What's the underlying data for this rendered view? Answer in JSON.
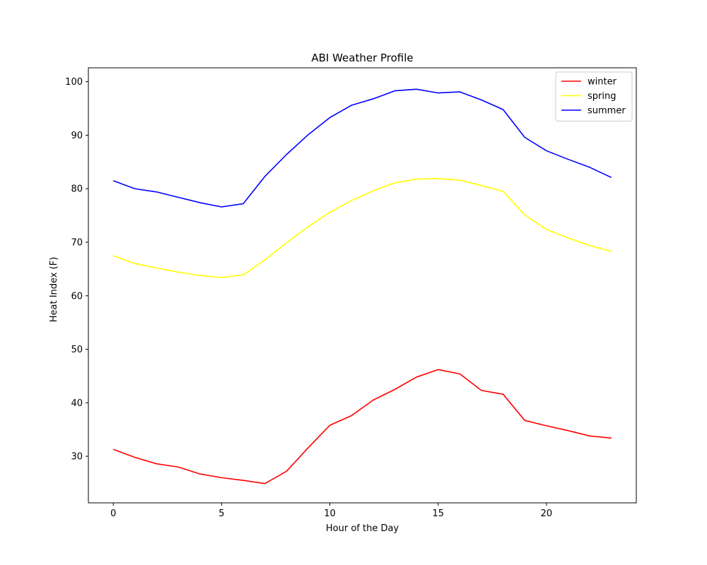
{
  "chart_data": {
    "type": "line",
    "title": "ABI Weather Profile",
    "xlabel": "Hour of the Day",
    "ylabel": "Heat Index (F)",
    "x": [
      0,
      1,
      2,
      3,
      4,
      5,
      6,
      7,
      8,
      9,
      10,
      11,
      12,
      13,
      14,
      15,
      16,
      17,
      18,
      19,
      20,
      21,
      22,
      23
    ],
    "xlim": [
      -1.15,
      24.15
    ],
    "ylim": [
      21.3,
      102.6
    ],
    "xticks": [
      0,
      5,
      10,
      15,
      20
    ],
    "yticks": [
      30,
      40,
      50,
      60,
      70,
      80,
      90,
      100
    ],
    "grid": false,
    "legend_position": "top-right",
    "series": [
      {
        "name": "winter",
        "color": "#ff0000",
        "values": [
          31.3,
          29.8,
          28.6,
          28.0,
          26.7,
          26.0,
          25.5,
          24.9,
          27.2,
          31.6,
          35.8,
          37.6,
          40.5,
          42.5,
          44.8,
          46.2,
          45.4,
          42.3,
          41.6,
          36.7,
          35.7,
          34.8,
          33.8,
          33.4
        ]
      },
      {
        "name": "spring",
        "color": "#ffff00",
        "values": [
          67.5,
          66.0,
          65.2,
          64.4,
          63.8,
          63.4,
          63.9,
          66.7,
          69.9,
          72.9,
          75.6,
          77.8,
          79.6,
          81.1,
          81.8,
          81.9,
          81.6,
          80.6,
          79.5,
          75.1,
          72.4,
          70.8,
          69.4,
          68.3
        ]
      },
      {
        "name": "summer",
        "color": "#0000ff",
        "values": [
          81.5,
          80.0,
          79.4,
          78.4,
          77.4,
          76.6,
          77.2,
          82.3,
          86.4,
          90.1,
          93.3,
          95.6,
          96.8,
          98.3,
          98.6,
          97.9,
          98.1,
          96.6,
          94.8,
          89.6,
          87.1,
          85.5,
          84.0,
          82.1
        ]
      }
    ]
  }
}
